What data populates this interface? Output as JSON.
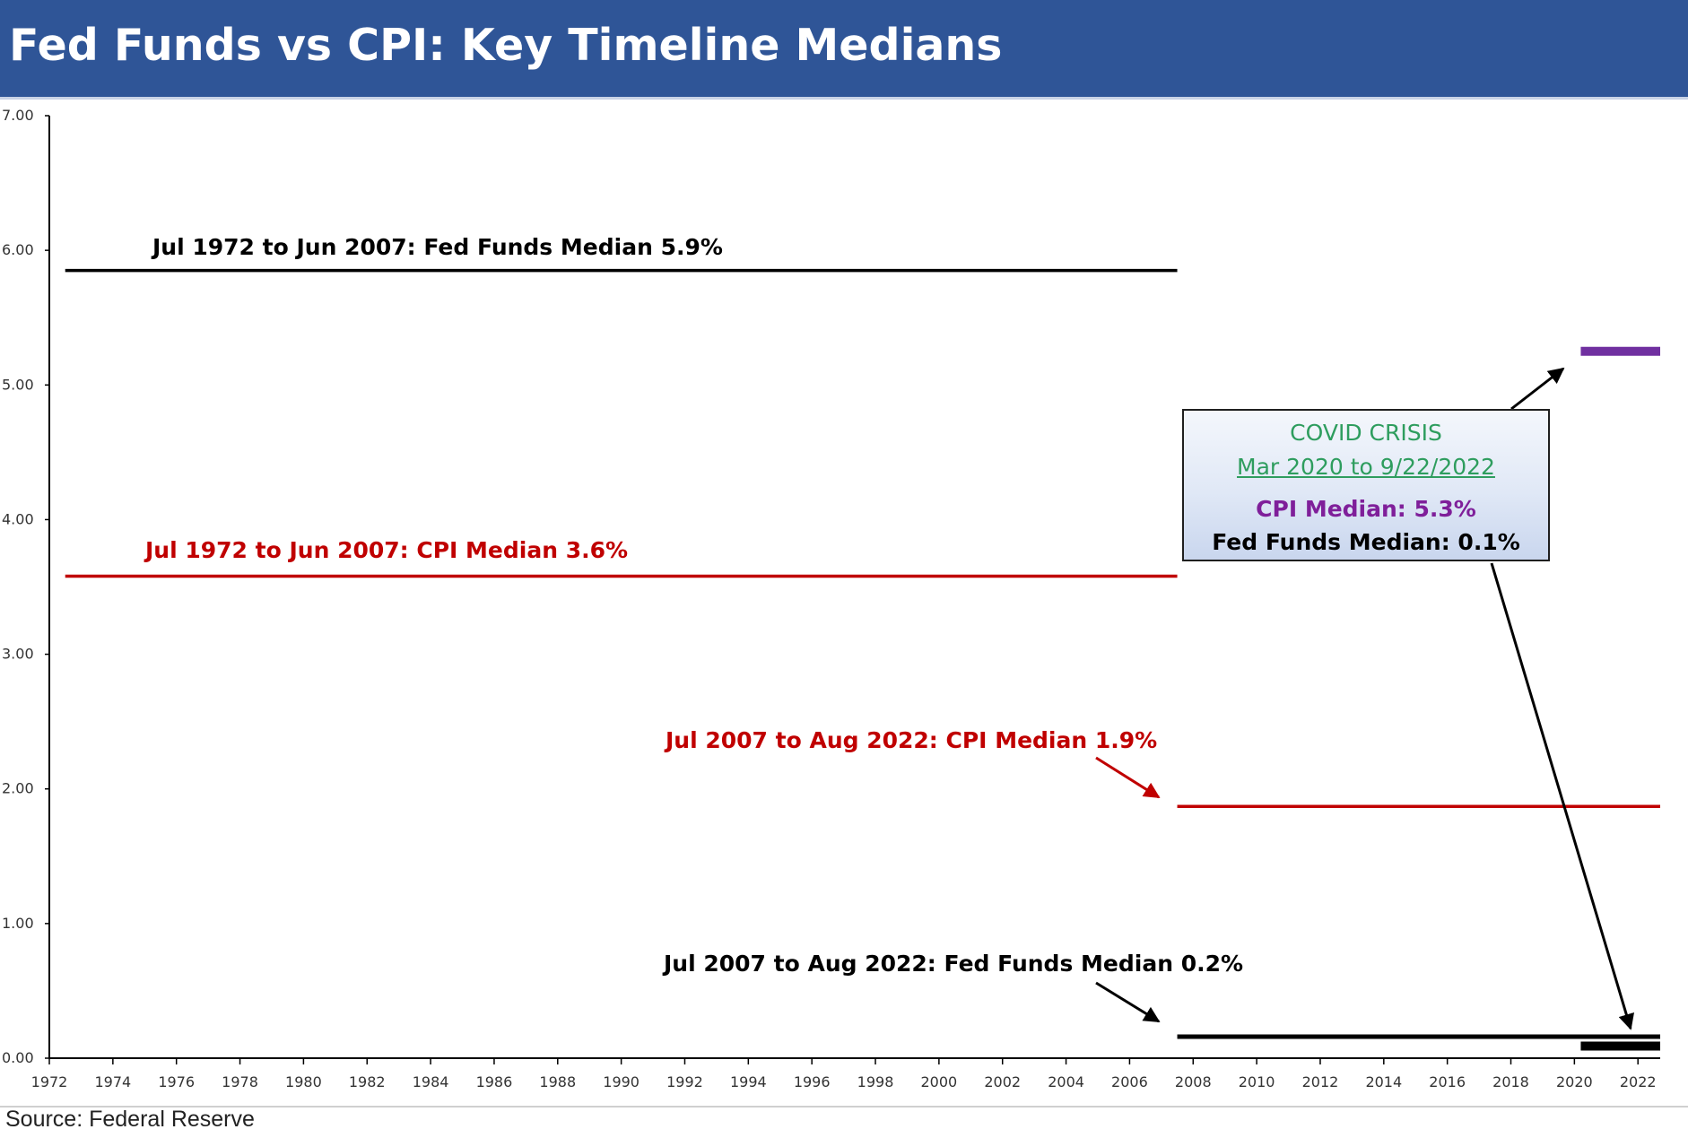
{
  "header": {
    "title": "Fed Funds vs CPI: Key Timeline Medians"
  },
  "footer": {
    "source": "Source: Federal Reserve"
  },
  "colors": {
    "header_bg": "#2f5597",
    "fed_funds": "#000000",
    "cpi": "#c00000",
    "covid_cpi": "#7030a0",
    "covid_title": "#2e9d5e"
  },
  "chart_data": {
    "type": "line",
    "title": "",
    "xlabel": "",
    "ylabel": "",
    "xlim": [
      1972,
      2022.7
    ],
    "ylim": [
      0,
      7
    ],
    "y_ticks": [
      "0.00",
      "1.00",
      "2.00",
      "3.00",
      "4.00",
      "5.00",
      "6.00",
      "7.00"
    ],
    "x_ticks": [
      "1972",
      "1974",
      "1976",
      "1978",
      "1980",
      "1982",
      "1984",
      "1986",
      "1988",
      "1990",
      "1992",
      "1994",
      "1996",
      "1998",
      "2000",
      "2002",
      "2004",
      "2006",
      "2008",
      "2010",
      "2012",
      "2014",
      "2016",
      "2018",
      "2020",
      "2022"
    ],
    "grid": false,
    "series": [
      {
        "label": "Jul 1972 to  Jun 2007: Fed Funds Median 5.9%",
        "x": [
          1972.5,
          2007.5
        ],
        "y": [
          5.85,
          5.85
        ],
        "color": "#000000"
      },
      {
        "label": "Jul 1972 to Jun 2007: CPI Median 3.6%",
        "x": [
          1972.5,
          2007.5
        ],
        "y": [
          3.58,
          3.58
        ],
        "color": "#c00000"
      },
      {
        "label": "Jul 2007 to Aug 2022: CPI Median 1.9%",
        "x": [
          2007.5,
          2022.7
        ],
        "y": [
          1.87,
          1.87
        ],
        "color": "#c00000"
      },
      {
        "label": "Jul 2007 to Aug 2022: Fed Funds Median 0.2%",
        "x": [
          2007.5,
          2022.7
        ],
        "y": [
          0.16,
          0.16
        ],
        "color": "#000000"
      },
      {
        "label": "CPI Median: 5.3%",
        "x": [
          2020.2,
          2022.7
        ],
        "y": [
          5.25,
          5.25
        ],
        "color": "#7030a0"
      },
      {
        "label": "Fed Funds Median: 0.1%",
        "x": [
          2020.2,
          2022.7
        ],
        "y": [
          0.09,
          0.09
        ],
        "color": "#000000"
      }
    ],
    "annotations": {
      "covid_box": {
        "title": "COVID CRISIS",
        "period": "Mar 2020 to 9/22/2022",
        "cpi": "CPI Median: 5.3%",
        "fed_funds": "Fed Funds Median: 0.1%"
      }
    }
  }
}
